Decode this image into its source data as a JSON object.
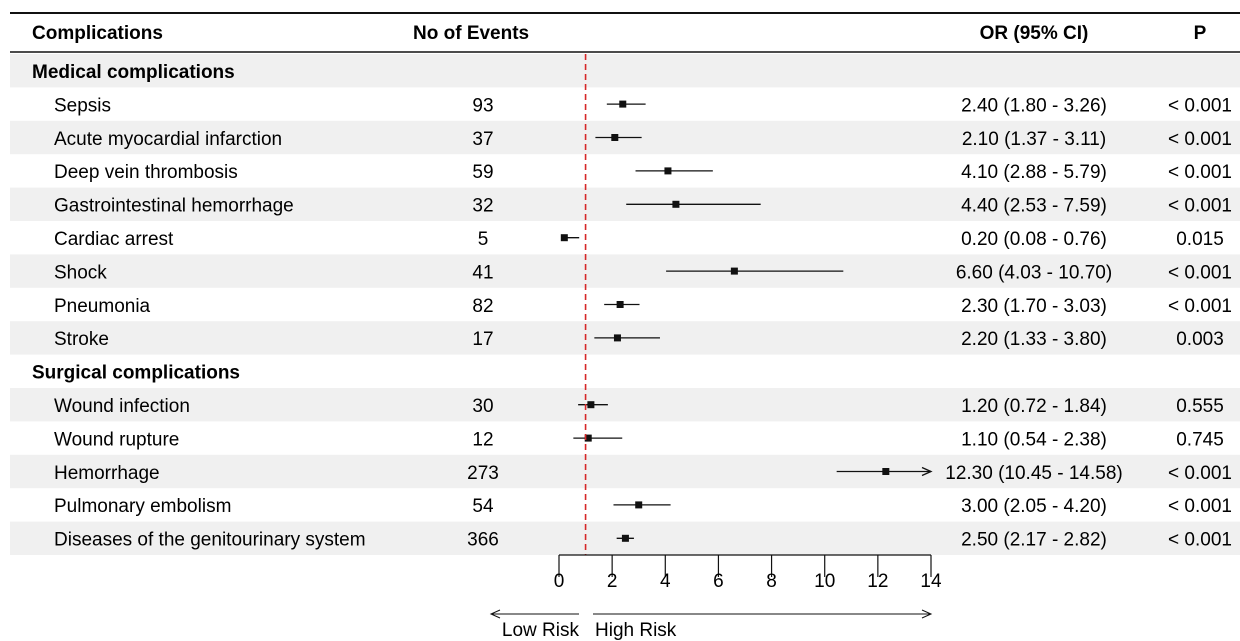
{
  "headers": {
    "complications": "Complications",
    "events": "No of Events",
    "or": "OR (95% CI)",
    "p": "P"
  },
  "arrow_labels": {
    "low": "Low Risk",
    "high": "High Risk"
  },
  "colors": {
    "reference_line": "#d62728",
    "stripe": "#f0f0f0",
    "ink": "#111111"
  },
  "chart_data": {
    "type": "forest",
    "x_ticks": [
      0,
      2,
      4,
      6,
      8,
      10,
      12,
      14
    ],
    "xlim": [
      0,
      14
    ],
    "reference_value": 1,
    "reference_line_style": "dashed",
    "groups": [
      {
        "name": "Medical complications",
        "rows": [
          {
            "label": "Sepsis",
            "events": "93",
            "or": 2.4,
            "lo": 1.8,
            "hi": 3.26,
            "or_text": "2.40 (1.80 - 3.26)",
            "p_text": "< 0.001"
          },
          {
            "label": "Acute myocardial infarction",
            "events": "37",
            "or": 2.1,
            "lo": 1.37,
            "hi": 3.11,
            "or_text": "2.10 (1.37 - 3.11)",
            "p_text": "< 0.001"
          },
          {
            "label": "Deep vein thrombosis",
            "events": "59",
            "or": 4.1,
            "lo": 2.88,
            "hi": 5.79,
            "or_text": "4.10 (2.88 - 5.79)",
            "p_text": "< 0.001"
          },
          {
            "label": "Gastrointestinal hemorrhage",
            "events": "32",
            "or": 4.4,
            "lo": 2.53,
            "hi": 7.59,
            "or_text": "4.40 (2.53 - 7.59)",
            "p_text": "< 0.001"
          },
          {
            "label": "Cardiac arrest",
            "events": "5",
            "or": 0.2,
            "lo": 0.08,
            "hi": 0.76,
            "or_text": "0.20 (0.08 - 0.76)",
            "p_text": "0.015"
          },
          {
            "label": "Shock",
            "events": "41",
            "or": 6.6,
            "lo": 4.03,
            "hi": 10.7,
            "or_text": "6.60 (4.03 - 10.70)",
            "p_text": "< 0.001"
          },
          {
            "label": "Pneumonia",
            "events": "82",
            "or": 2.3,
            "lo": 1.7,
            "hi": 3.03,
            "or_text": "2.30 (1.70 - 3.03)",
            "p_text": "< 0.001"
          },
          {
            "label": "Stroke",
            "events": "17",
            "or": 2.2,
            "lo": 1.33,
            "hi": 3.8,
            "or_text": "2.20 (1.33 - 3.80)",
            "p_text": "0.003"
          }
        ]
      },
      {
        "name": "Surgical complications",
        "rows": [
          {
            "label": "Wound infection",
            "events": "30",
            "or": 1.2,
            "lo": 0.72,
            "hi": 1.84,
            "or_text": "1.20 (0.72 - 1.84)",
            "p_text": "0.555"
          },
          {
            "label": "Wound rupture",
            "events": "12",
            "or": 1.1,
            "lo": 0.54,
            "hi": 2.38,
            "or_text": "1.10 (0.54 - 2.38)",
            "p_text": "0.745"
          },
          {
            "label": "Hemorrhage",
            "events": "273",
            "or": 12.3,
            "lo": 10.45,
            "hi": 14.58,
            "or_text": "12.30 (10.45 - 14.58)",
            "p_text": "< 0.001",
            "arrow_right": true
          },
          {
            "label": "Pulmonary embolism",
            "events": "54",
            "or": 3.0,
            "lo": 2.05,
            "hi": 4.2,
            "or_text": "3.00 (2.05 - 4.20)",
            "p_text": "< 0.001"
          },
          {
            "label": "Diseases of the genitourinary system",
            "events": "366",
            "or": 2.5,
            "lo": 2.17,
            "hi": 2.82,
            "or_text": "2.50 (2.17 - 2.82)",
            "p_text": "< 0.001"
          }
        ]
      }
    ]
  }
}
